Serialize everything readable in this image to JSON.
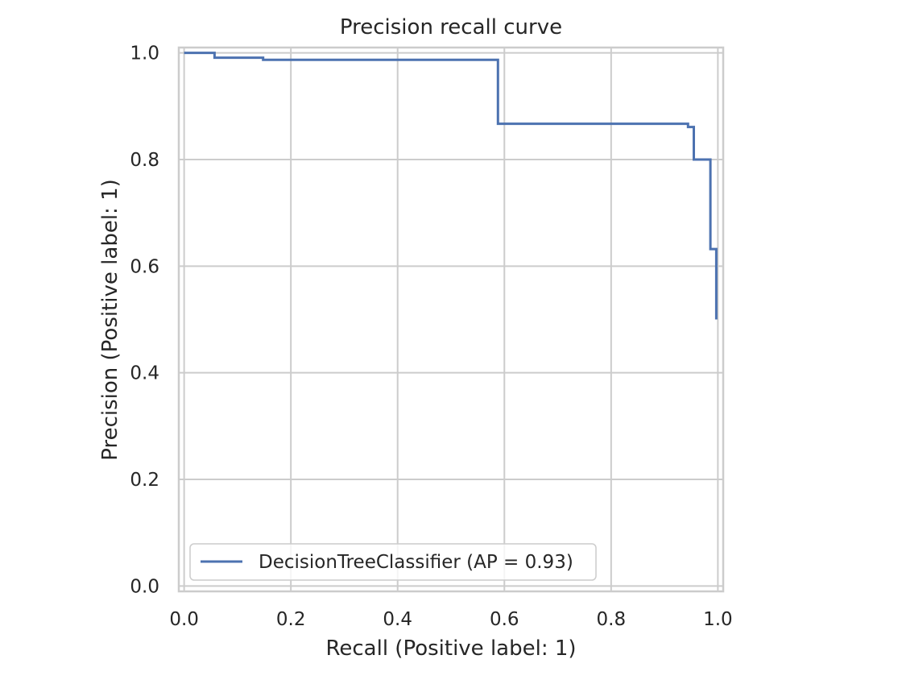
{
  "chart_data": {
    "type": "line",
    "title": "Precision recall curve",
    "xlabel": "Recall (Positive label: 1)",
    "ylabel": "Precision (Positive label: 1)",
    "xlim": [
      -0.01,
      1.01
    ],
    "ylim": [
      -0.01,
      1.01
    ],
    "xticks": [
      0.0,
      0.2,
      0.4,
      0.6,
      0.8,
      1.0
    ],
    "xtick_labels": [
      "0.0",
      "0.2",
      "0.4",
      "0.6",
      "0.8",
      "1.0"
    ],
    "yticks": [
      0.0,
      0.2,
      0.4,
      0.6,
      0.8,
      1.0
    ],
    "ytick_labels": [
      "0.0",
      "0.2",
      "0.4",
      "0.6",
      "0.8",
      "1.0"
    ],
    "grid": true,
    "legend_position": "lower-left",
    "series": [
      {
        "name": "DecisionTreeClassifier (AP = 0.93)",
        "color": "#4c72b0",
        "x": [
          0.0,
          0.057,
          0.057,
          0.148,
          0.148,
          0.588,
          0.588,
          0.944,
          0.944,
          0.955,
          0.955,
          0.986,
          0.986,
          0.997,
          0.997
        ],
        "y": [
          1.0,
          1.0,
          0.991,
          0.991,
          0.987,
          0.987,
          0.867,
          0.867,
          0.861,
          0.861,
          0.8,
          0.8,
          0.632,
          0.632,
          0.5
        ]
      }
    ]
  }
}
